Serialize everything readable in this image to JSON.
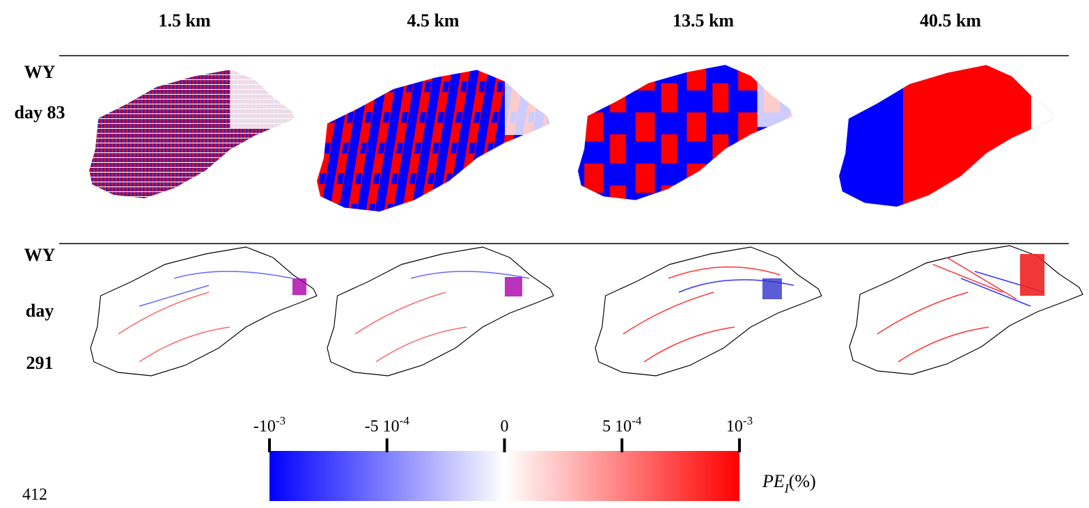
{
  "columns": [
    "1.5 km",
    "4.5 km",
    "13.5 km",
    "40.5 km"
  ],
  "rows": [
    [
      "WY",
      "day 83"
    ],
    [
      "WY",
      "day",
      "291"
    ]
  ],
  "colorbar": {
    "lim": [
      -0.001,
      0.001
    ],
    "ticks": [
      {
        "value": -0.001,
        "label": {
          "base": "-10",
          "sup": "-3"
        }
      },
      {
        "value": -0.0005,
        "label": {
          "base": "-5 10",
          "sup": "-4"
        }
      },
      {
        "value": 0,
        "label": {
          "base": "0",
          "sup": ""
        }
      },
      {
        "value": 0.0005,
        "label": {
          "base": "5 10",
          "sup": "-4"
        }
      },
      {
        "value": 0.001,
        "label": {
          "base": "10",
          "sup": "-3"
        }
      }
    ],
    "label": {
      "main": "PE",
      "sub": "I",
      "suffix": "(%)"
    }
  },
  "line_number": "412"
}
